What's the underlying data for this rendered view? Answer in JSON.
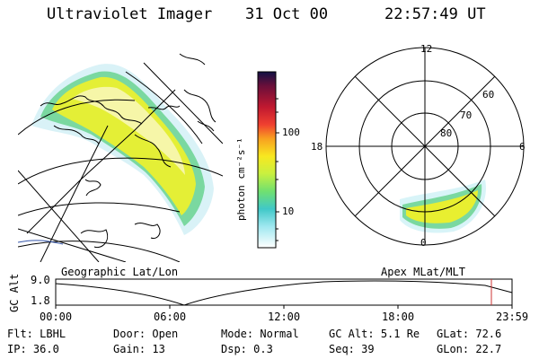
{
  "header": {
    "title": "Ultraviolet Imager",
    "date": "31 Oct 00",
    "time": "22:57:49 UT"
  },
  "colorbar": {
    "label": "photon cm⁻²s⁻¹",
    "ticks": [
      "100",
      "10"
    ],
    "colors": [
      "#111144",
      "#6a0f3a",
      "#c01830",
      "#f04030",
      "#f8a020",
      "#f8e820",
      "#c8f040",
      "#70e070",
      "#40c8c8",
      "#a0e8f0",
      "#ffffff"
    ]
  },
  "polar": {
    "mlt_labels": [
      "12",
      "18",
      "6",
      "0"
    ],
    "lat_labels": [
      "60",
      "70",
      "80"
    ]
  },
  "map": {
    "caption_left": "Geographic Lat/Lon",
    "caption_right": "Apex MLat/MLT"
  },
  "altitude_panel": {
    "axis_label": "GC Alt",
    "ytick_top": "9.0",
    "ytick_bottom": "1.8",
    "xticks": [
      "00:00",
      "06:00",
      "12:00",
      "18:00",
      "23:59"
    ]
  },
  "status": {
    "row1": [
      {
        "label": "Flt:",
        "value": "LBHL"
      },
      {
        "label": "Door:",
        "value": "Open"
      },
      {
        "label": "Mode:",
        "value": "Normal"
      },
      {
        "label": "GC Alt:",
        "value": "5.1 Re"
      },
      {
        "label": "GLat:",
        "value": "72.6"
      }
    ],
    "row2": [
      {
        "label": "IP:",
        "value": "36.0"
      },
      {
        "label": "Gain:",
        "value": "13"
      },
      {
        "label": "Dsp:",
        "value": "0.3"
      },
      {
        "label": "Seq:",
        "value": "39"
      },
      {
        "label": "GLon:",
        "value": "22.7"
      }
    ]
  },
  "accent": {
    "marker": "#cc3333",
    "coast": "#3355aa"
  }
}
